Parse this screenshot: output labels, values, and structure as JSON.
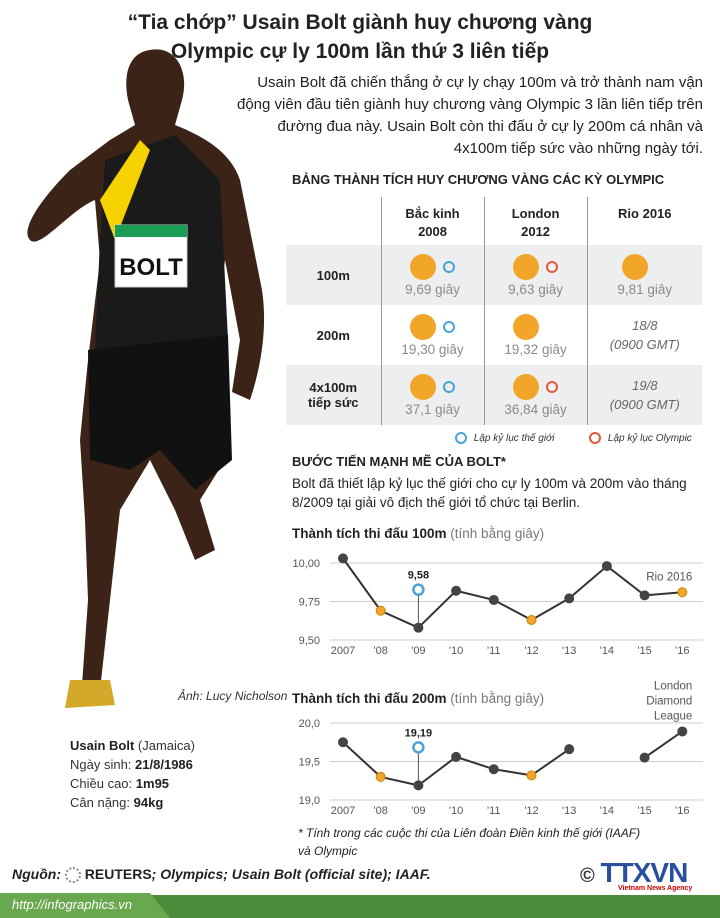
{
  "title": [
    "“Tia chớp” Usain Bolt giành huy chương vàng",
    "Olympic cự ly 100m lần thứ 3 liên tiếp"
  ],
  "intro": "Usain Bolt đã chiến thắng ở cự ly chạy 100m và trở thành nam vận động viên đầu tiên giành huy chương vàng Olympic 3 lần liên tiếp trên đường đua này. Usain  Bolt còn thi đấu ở cự ly 200m cá nhân và 4x100m tiếp sức vào những ngày tới.",
  "photo": {
    "bib": "BOLT",
    "caption": "Ảnh: Lucy Nicholson"
  },
  "bio": {
    "name": "Usain Bolt",
    "country": "(Jamaica)",
    "birth_label": "Ngày sinh:",
    "birth": "21/8/1986",
    "height_label": "Chiều cao:",
    "height": "1m95",
    "weight_label": "Cân nặng:",
    "weight": "94kg"
  },
  "table": {
    "title": "BẢNG THÀNH TÍCH HUY CHƯƠNG VÀNG CÁC KỲ OLYMPIC",
    "columns": [
      [
        "Bắc kinh",
        "2008"
      ],
      [
        "London",
        "2012"
      ],
      [
        "Rio 2016",
        ""
      ]
    ],
    "rows": [
      {
        "label": [
          "100m",
          ""
        ],
        "cells": [
          {
            "medal": true,
            "record": "world",
            "text": "9,69 giây"
          },
          {
            "medal": true,
            "record": "olympic",
            "text": "9,63 giây"
          },
          {
            "medal": true,
            "record": "",
            "text": "9,81 giây"
          }
        ]
      },
      {
        "label": [
          "200m",
          ""
        ],
        "cells": [
          {
            "medal": true,
            "record": "world",
            "text": "19,30 giây"
          },
          {
            "medal": true,
            "record": "",
            "text": "19,32 giây"
          },
          {
            "medal": false,
            "record": "",
            "text": "18/8",
            "text2": "(0900 GMT)"
          }
        ]
      },
      {
        "label": [
          "4x100m",
          "tiếp sức"
        ],
        "cells": [
          {
            "medal": true,
            "record": "world",
            "text": "37,1 giây"
          },
          {
            "medal": true,
            "record": "olympic",
            "text": "36,84 giây"
          },
          {
            "medal": false,
            "record": "",
            "text": "19/8",
            "text2": "(0900 GMT)"
          }
        ]
      }
    ],
    "legend_world": "Lập kỷ lục thế giới",
    "legend_olympic": "Lập kỷ lục Olympic"
  },
  "section2": {
    "title": "BƯỚC TIẾN MẠNH MẼ CỦA BOLT*",
    "text": "Bolt đã thiết lập kỷ lục thế giới cho cự ly 100m và 200m vào tháng 8/2009 tại giải vô địch thế giới tổ chức tại Berlin."
  },
  "colors": {
    "medal": "#f2a629",
    "world": "#4aa3d6",
    "olympic": "#e05a3a",
    "line": "#333333",
    "green": "#4d8c3a"
  },
  "chart_data": [
    {
      "type": "line",
      "title": "Thành tích thi đấu 100m",
      "subtitle": "(tính bằng giây)",
      "categories": [
        "2007",
        "'08",
        "'09",
        "'10",
        "'11",
        "'12",
        "'13",
        "'14",
        "'15",
        "'16"
      ],
      "values": [
        10.03,
        9.69,
        9.58,
        9.82,
        9.76,
        9.63,
        9.77,
        9.98,
        9.79,
        9.81
      ],
      "olympic_points": [
        1,
        5,
        9
      ],
      "ylim": [
        9.5,
        10.0
      ],
      "yticks": [
        "9,50",
        "9,75",
        "10,00"
      ],
      "ytick_values": [
        9.5,
        9.75,
        10.0
      ],
      "record": {
        "index": 2,
        "label": "9,58"
      },
      "annotation": {
        "index": 9,
        "label": "Rio 2016"
      },
      "grid": true
    },
    {
      "type": "line",
      "title": "Thành tích thi đấu 200m",
      "subtitle": "(tính bằng giây)",
      "categories": [
        "2007",
        "'08",
        "'09",
        "'10",
        "'11",
        "'12",
        "'13",
        "'14",
        "'15",
        "'16"
      ],
      "values": [
        19.75,
        19.3,
        19.19,
        19.56,
        19.4,
        19.32,
        19.66,
        null,
        19.55,
        19.89
      ],
      "olympic_points": [
        1,
        5
      ],
      "ylim": [
        19.0,
        20.0
      ],
      "yticks": [
        "19,0",
        "19,5",
        "20,0"
      ],
      "ytick_values": [
        19.0,
        19.5,
        20.0
      ],
      "record": {
        "index": 2,
        "label": "19,19"
      },
      "annotation": {
        "index": 9,
        "label": "London Diamond League"
      },
      "grid": true
    }
  ],
  "note": [
    "* Tính trong các cuộc thi của Liên đoàn Điền kinh thế giới (IAAF)",
    "và Olympic"
  ],
  "source": {
    "label": "Nguồn:",
    "reuters": "REUTERS",
    "rest": "; Olympics; Usain Bolt (official site); IAAF."
  },
  "footer": {
    "url": "http://infographics.vn",
    "logo": "TTXVN",
    "logo_sub": "Vietnam News Agency"
  }
}
